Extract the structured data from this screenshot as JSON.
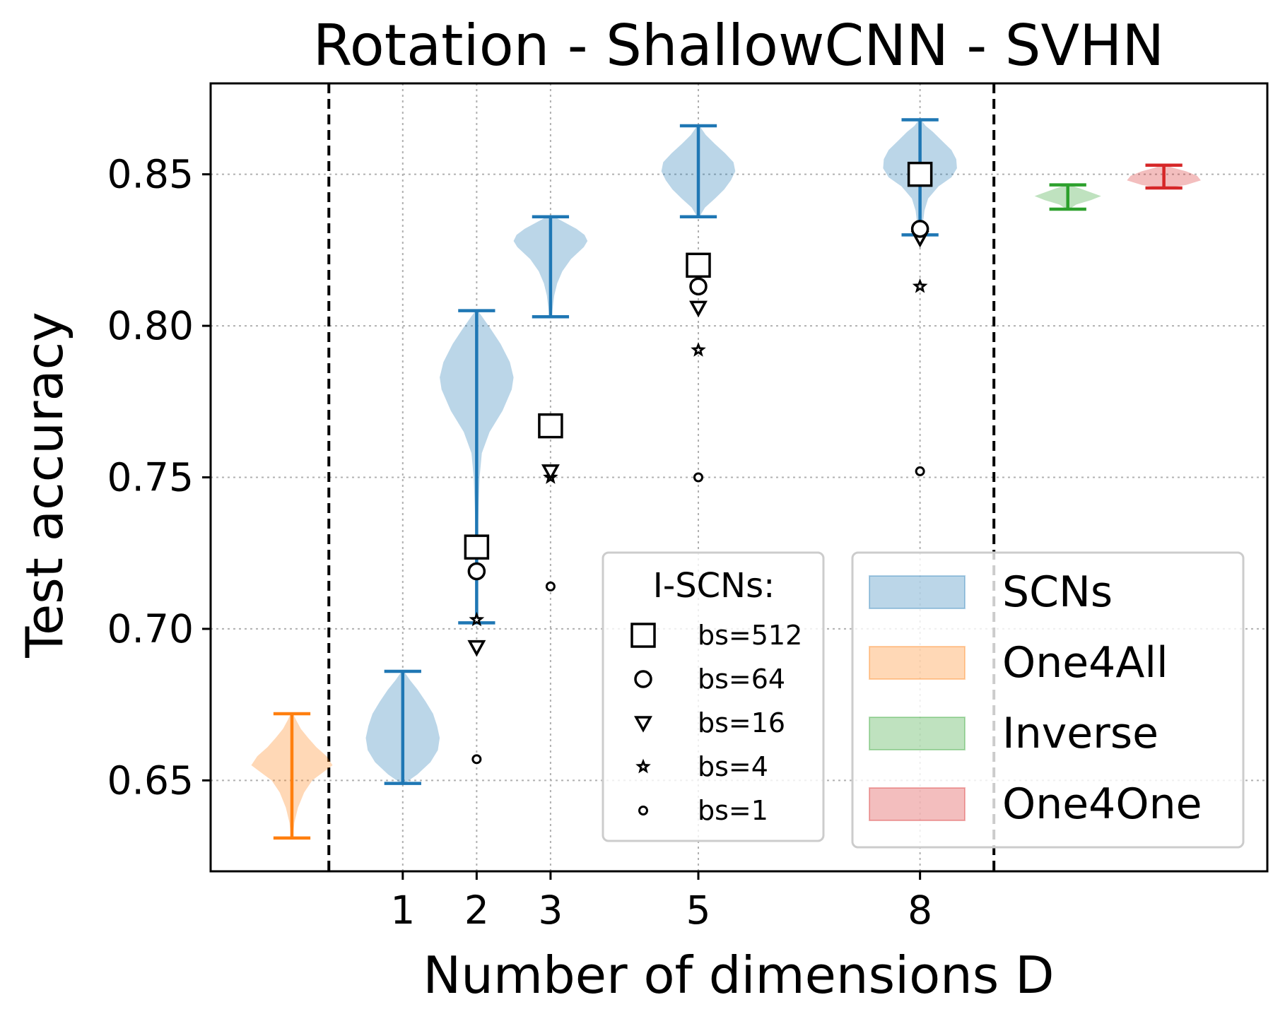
{
  "chart_data": {
    "type": "violin",
    "title": "Rotation - ShallowCNN - SVHN",
    "xlabel": "Number of dimensions D",
    "ylabel": "Test accuracy",
    "ylim": [
      0.62,
      0.88
    ],
    "xlim": [
      -1.6,
      12.7
    ],
    "yticks": [
      0.65,
      0.7,
      0.75,
      0.8,
      0.85
    ],
    "ytick_labels": [
      "0.65",
      "0.70",
      "0.75",
      "0.80",
      "0.85"
    ],
    "xticks": [
      1,
      2,
      3,
      5,
      8
    ],
    "xtick_labels": [
      "1",
      "2",
      "3",
      "5",
      "8"
    ],
    "vlines_dashed": [
      0.0,
      9.0
    ],
    "grid": true,
    "colors": {
      "SCNs": "#1f77b4",
      "One4All": "#ff7f0e",
      "Inverse": "#2ca02c",
      "One4One": "#d62728"
    },
    "violins": [
      {
        "series": "One4All",
        "x": -0.5,
        "min": 0.631,
        "max": 0.672,
        "half_width": 0.55,
        "profile": [
          [
            0.631,
            0.02
          ],
          [
            0.636,
            0.06
          ],
          [
            0.641,
            0.15
          ],
          [
            0.646,
            0.3
          ],
          [
            0.65,
            0.5
          ],
          [
            0.653,
            0.8
          ],
          [
            0.655,
            1.0
          ],
          [
            0.658,
            0.85
          ],
          [
            0.661,
            0.6
          ],
          [
            0.664,
            0.4
          ],
          [
            0.667,
            0.22
          ],
          [
            0.67,
            0.1
          ],
          [
            0.672,
            0.03
          ]
        ]
      },
      {
        "series": "SCNs",
        "x": 1,
        "min": 0.649,
        "max": 0.686,
        "half_width": 0.5,
        "profile": [
          [
            0.649,
            0.05
          ],
          [
            0.652,
            0.4
          ],
          [
            0.656,
            0.75
          ],
          [
            0.66,
            0.95
          ],
          [
            0.664,
            1.0
          ],
          [
            0.668,
            0.93
          ],
          [
            0.672,
            0.82
          ],
          [
            0.676,
            0.62
          ],
          [
            0.68,
            0.4
          ],
          [
            0.683,
            0.2
          ],
          [
            0.686,
            0.03
          ]
        ]
      },
      {
        "series": "SCNs",
        "x": 2,
        "min": 0.702,
        "max": 0.805,
        "half_width": 0.5,
        "profile": [
          [
            0.702,
            0.01
          ],
          [
            0.71,
            0.015
          ],
          [
            0.72,
            0.02
          ],
          [
            0.73,
            0.03
          ],
          [
            0.74,
            0.05
          ],
          [
            0.75,
            0.08
          ],
          [
            0.758,
            0.14
          ],
          [
            0.765,
            0.35
          ],
          [
            0.772,
            0.7
          ],
          [
            0.779,
            0.95
          ],
          [
            0.783,
            1.0
          ],
          [
            0.788,
            0.9
          ],
          [
            0.794,
            0.65
          ],
          [
            0.799,
            0.38
          ],
          [
            0.803,
            0.15
          ],
          [
            0.805,
            0.03
          ]
        ]
      },
      {
        "series": "SCNs",
        "x": 3,
        "min": 0.803,
        "max": 0.836,
        "half_width": 0.5,
        "profile": [
          [
            0.803,
            0.03
          ],
          [
            0.806,
            0.06
          ],
          [
            0.81,
            0.1
          ],
          [
            0.814,
            0.18
          ],
          [
            0.818,
            0.32
          ],
          [
            0.822,
            0.55
          ],
          [
            0.826,
            0.9
          ],
          [
            0.828,
            1.0
          ],
          [
            0.83,
            0.92
          ],
          [
            0.832,
            0.7
          ],
          [
            0.834,
            0.4
          ],
          [
            0.836,
            0.1
          ]
        ]
      },
      {
        "series": "SCNs",
        "x": 5,
        "min": 0.836,
        "max": 0.866,
        "half_width": 0.5,
        "profile": [
          [
            0.836,
            0.03
          ],
          [
            0.839,
            0.18
          ],
          [
            0.842,
            0.45
          ],
          [
            0.845,
            0.7
          ],
          [
            0.848,
            0.88
          ],
          [
            0.851,
            1.0
          ],
          [
            0.854,
            0.95
          ],
          [
            0.857,
            0.72
          ],
          [
            0.86,
            0.45
          ],
          [
            0.863,
            0.2
          ],
          [
            0.866,
            0.03
          ]
        ]
      },
      {
        "series": "SCNs",
        "x": 8,
        "min": 0.83,
        "max": 0.868,
        "half_width": 0.5,
        "profile": [
          [
            0.83,
            0.04
          ],
          [
            0.834,
            0.08
          ],
          [
            0.838,
            0.12
          ],
          [
            0.842,
            0.22
          ],
          [
            0.846,
            0.5
          ],
          [
            0.849,
            0.85
          ],
          [
            0.852,
            1.0
          ],
          [
            0.855,
            0.98
          ],
          [
            0.858,
            0.85
          ],
          [
            0.861,
            0.6
          ],
          [
            0.864,
            0.35
          ],
          [
            0.866,
            0.15
          ],
          [
            0.868,
            0.03
          ]
        ]
      },
      {
        "series": "Inverse",
        "x": 10.0,
        "min": 0.8385,
        "max": 0.8465,
        "half_width": 0.45,
        "profile": [
          [
            0.8385,
            0.05
          ],
          [
            0.84,
            0.25
          ],
          [
            0.8415,
            0.7
          ],
          [
            0.8428,
            1.0
          ],
          [
            0.844,
            0.7
          ],
          [
            0.8452,
            0.4
          ],
          [
            0.8465,
            0.05
          ]
        ]
      },
      {
        "series": "One4One",
        "x": 11.3,
        "min": 0.8455,
        "max": 0.853,
        "half_width": 0.5,
        "profile": [
          [
            0.8455,
            0.05
          ],
          [
            0.8465,
            0.6
          ],
          [
            0.848,
            1.0
          ],
          [
            0.8495,
            0.9
          ],
          [
            0.851,
            0.6
          ],
          [
            0.852,
            0.3
          ],
          [
            0.853,
            0.05
          ]
        ]
      }
    ],
    "iscn_points": [
      {
        "x": 2,
        "bs512": 0.727,
        "bs64": 0.719,
        "bs16": 0.694,
        "bs4": 0.703,
        "bs1": 0.657
      },
      {
        "x": 3,
        "bs512": 0.767,
        "bs64": 0.767,
        "bs16": 0.752,
        "bs4": 0.75,
        "bs1": 0.714
      },
      {
        "x": 5,
        "bs512": 0.82,
        "bs64": 0.813,
        "bs16": 0.806,
        "bs4": 0.792,
        "bs1": 0.75
      },
      {
        "x": 8,
        "bs512": 0.85,
        "bs64": 0.832,
        "bs16": 0.829,
        "bs4": 0.813,
        "bs1": 0.752
      }
    ],
    "legend_iscn": {
      "title": "I-SCNs:",
      "entries": [
        {
          "key": "bs512",
          "marker": "square",
          "label": "bs=512"
        },
        {
          "key": "bs64",
          "marker": "circle",
          "label": "bs=64"
        },
        {
          "key": "bs16",
          "marker": "triangle-down",
          "label": "bs=16"
        },
        {
          "key": "bs4",
          "marker": "star",
          "label": "bs=4"
        },
        {
          "key": "bs1",
          "marker": "small-circle",
          "label": "bs=1"
        }
      ],
      "placement": "lower-center-right"
    },
    "legend_methods": {
      "entries": [
        {
          "key": "SCNs",
          "label": "SCNs"
        },
        {
          "key": "One4All",
          "label": "One4All"
        },
        {
          "key": "Inverse",
          "label": "Inverse"
        },
        {
          "key": "One4One",
          "label": "One4One"
        }
      ],
      "placement": "lower-right"
    }
  }
}
